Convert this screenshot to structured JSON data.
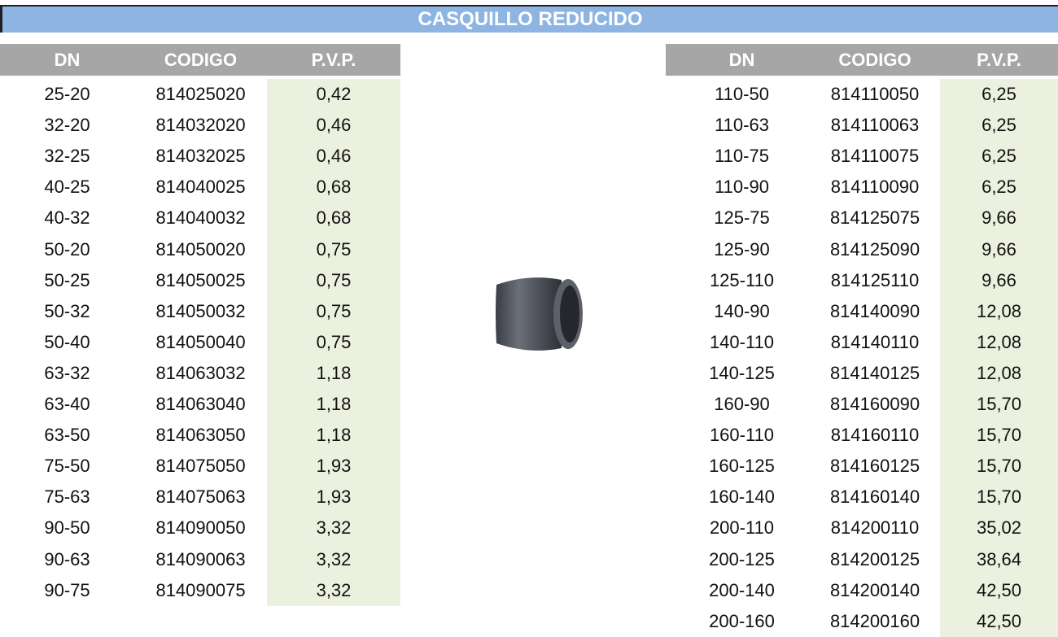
{
  "title": "CASQUILLO REDUCIDO",
  "left_table": {
    "headers": [
      "DN",
      "CODIGO",
      "P.V.P."
    ],
    "rows": [
      [
        "25-20",
        "814025020",
        "0,42"
      ],
      [
        "32-20",
        "814032020",
        "0,46"
      ],
      [
        "32-25",
        "814032025",
        "0,46"
      ],
      [
        "40-25",
        "814040025",
        "0,68"
      ],
      [
        "40-32",
        "814040032",
        "0,68"
      ],
      [
        "50-20",
        "814050020",
        "0,75"
      ],
      [
        "50-25",
        "814050025",
        "0,75"
      ],
      [
        "50-32",
        "814050032",
        "0,75"
      ],
      [
        "50-40",
        "814050040",
        "0,75"
      ],
      [
        "63-32",
        "814063032",
        "1,18"
      ],
      [
        "63-40",
        "814063040",
        "1,18"
      ],
      [
        "63-50",
        "814063050",
        "1,18"
      ],
      [
        "75-50",
        "814075050",
        "1,93"
      ],
      [
        "75-63",
        "814075063",
        "1,93"
      ],
      [
        "90-50",
        "814090050",
        "3,32"
      ],
      [
        "90-63",
        "814090063",
        "3,32"
      ],
      [
        "90-75",
        "814090075",
        "3,32"
      ]
    ]
  },
  "right_table": {
    "headers": [
      "DN",
      "CODIGO",
      "P.V.P."
    ],
    "rows": [
      [
        "110-50",
        "814110050",
        "6,25"
      ],
      [
        "110-63",
        "814110063",
        "6,25"
      ],
      [
        "110-75",
        "814110075",
        "6,25"
      ],
      [
        "110-90",
        "814110090",
        "6,25"
      ],
      [
        "125-75",
        "814125075",
        "9,66"
      ],
      [
        "125-90",
        "814125090",
        "9,66"
      ],
      [
        "125-110",
        "814125110",
        "9,66"
      ],
      [
        "140-90",
        "814140090",
        "12,08"
      ],
      [
        "140-110",
        "814140110",
        "12,08"
      ],
      [
        "140-125",
        "814140125",
        "12,08"
      ],
      [
        "160-90",
        "814160090",
        "15,70"
      ],
      [
        "160-110",
        "814160110",
        "15,70"
      ],
      [
        "160-125",
        "814160125",
        "15,70"
      ],
      [
        "160-140",
        "814160140",
        "15,70"
      ],
      [
        "200-110",
        "814200110",
        "35,02"
      ],
      [
        "200-125",
        "814200125",
        "38,64"
      ],
      [
        "200-140",
        "814200140",
        "42,50"
      ],
      [
        "200-160",
        "814200160",
        "42,50"
      ]
    ]
  }
}
